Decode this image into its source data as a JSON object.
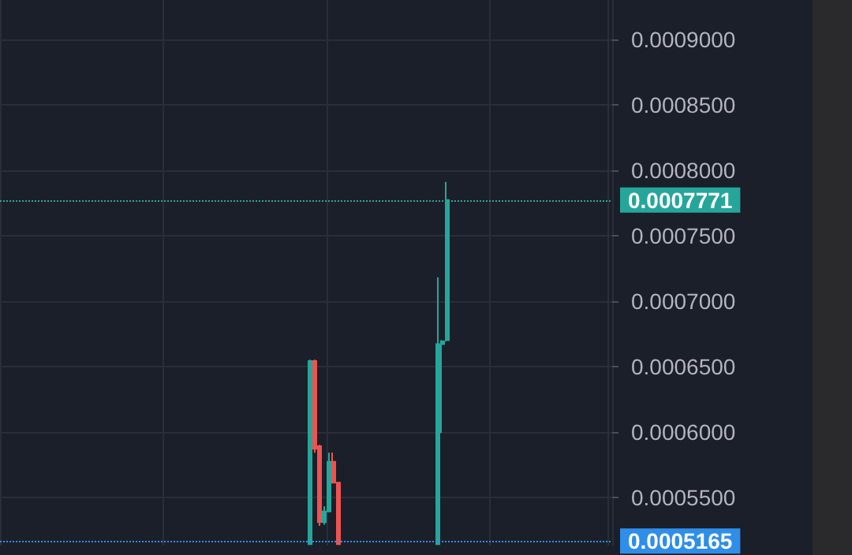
{
  "chart_data": {
    "type": "candlestick",
    "categories": [
      null,
      null,
      null,
      null,
      null,
      null,
      null,
      null,
      null,
      null,
      null,
      null,
      null,
      null,
      null,
      null,
      null,
      null,
      null,
      null,
      null,
      null,
      null,
      null,
      null,
      null,
      null,
      null,
      null,
      null,
      null,
      null,
      null,
      null,
      null,
      null,
      null,
      null,
      null,
      null,
      null,
      null,
      null,
      null,
      null,
      null,
      null,
      null,
      null,
      null,
      null,
      null,
      null,
      null,
      null,
      null,
      null,
      null,
      null,
      null,
      null,
      null,
      null,
      null,
      null,
      null,
      null,
      null,
      null,
      null,
      null,
      null,
      null,
      null,
      null,
      null,
      null,
      null,
      null,
      null,
      null,
      null,
      null,
      null,
      null,
      null,
      null,
      null,
      null,
      null,
      null,
      null,
      null,
      null,
      null,
      null,
      null,
      null,
      null,
      null,
      null,
      null,
      null,
      null,
      null,
      null,
      null,
      null,
      null,
      null,
      null,
      null,
      null,
      null,
      null,
      null,
      null,
      null,
      null,
      null,
      null,
      null,
      null,
      null,
      null,
      null,
      null,
      null,
      null,
      null,
      null,
      null,
      null,
      null,
      null
    ],
    "ohlc": [
      null,
      null,
      null,
      null,
      null,
      null,
      null,
      null,
      null,
      null,
      null,
      null,
      null,
      null,
      null,
      null,
      null,
      null,
      null,
      null,
      null,
      null,
      null,
      null,
      null,
      null,
      null,
      null,
      null,
      null,
      null,
      null,
      null,
      null,
      null,
      null,
      null,
      null,
      null,
      null,
      null,
      null,
      null,
      null,
      null,
      null,
      null,
      null,
      null,
      null,
      null,
      null,
      null,
      null,
      null,
      null,
      null,
      null,
      null,
      null,
      null,
      null,
      null,
      null,
      null,
      null,
      null,
      null,
      [
        0.000514,
        0.000655,
        0.000514,
        0.000654
      ],
      [
        0.000654,
        0.000655,
        0.000584,
        0.000587
      ],
      [
        0.000589,
        0.00059,
        0.000528,
        0.000531
      ],
      [
        0.000531,
        0.000543,
        0.000529,
        0.000539
      ],
      [
        0.000539,
        0.000584,
        0.000539,
        0.000577
      ],
      [
        0.000577,
        0.000584,
        0.000561,
        0.000561
      ],
      [
        0.000561,
        0.000561,
        0.000514,
        0.000514
      ],
      null,
      null,
      null,
      null,
      null,
      null,
      null,
      null,
      null,
      null,
      null,
      null,
      null,
      null,
      null,
      null,
      null,
      null,
      null,
      null,
      null,
      [
        0.000514,
        0.000718,
        0.000514,
        0.000667
      ],
      [
        0.000667,
        0.00067,
        0.000599,
        0.000669
      ],
      [
        0.00067,
        0.000791,
        0.000669,
        0.0007771
      ],
      null,
      null,
      null,
      null,
      null,
      null,
      null,
      null,
      null,
      null,
      null,
      null,
      null,
      null,
      null,
      null,
      null,
      null,
      null,
      null,
      null,
      null,
      null,
      null,
      null,
      null,
      null,
      null,
      null,
      null,
      null,
      null,
      null,
      null,
      null,
      null
    ],
    "colors": [
      null,
      null,
      null,
      null,
      null,
      null,
      null,
      null,
      null,
      null,
      null,
      null,
      null,
      null,
      null,
      null,
      null,
      null,
      null,
      null,
      null,
      null,
      null,
      null,
      null,
      null,
      null,
      null,
      null,
      null,
      null,
      null,
      null,
      null,
      null,
      null,
      null,
      null,
      null,
      null,
      null,
      null,
      null,
      null,
      null,
      null,
      null,
      null,
      null,
      null,
      null,
      null,
      null,
      null,
      null,
      null,
      null,
      null,
      null,
      null,
      null,
      null,
      null,
      null,
      null,
      null,
      null,
      null,
      "#26a69a",
      "#ef5350",
      "#ef5350",
      "#26a69a",
      "#26a69a",
      "#ef5350",
      "#ef5350",
      null,
      null,
      null,
      null,
      null,
      null,
      null,
      null,
      null,
      null,
      null,
      null,
      null,
      null,
      null,
      null,
      null,
      null,
      null,
      null,
      null,
      "#26a69a",
      "#26a69a",
      "#26a69a",
      null,
      null,
      null,
      null,
      null,
      null,
      null,
      null,
      null,
      null,
      null,
      null,
      null,
      null,
      null,
      null,
      null,
      null,
      null,
      null,
      null,
      null,
      null,
      null,
      null,
      null,
      null,
      null,
      null,
      null,
      null,
      null,
      null,
      null,
      null,
      null
    ],
    "ylim": [
      0.000513,
      0.00093
    ],
    "yticks": [
      {
        "value": 0.00055,
        "label": "0.0005500"
      },
      {
        "value": 0.0006,
        "label": "0.0006000"
      },
      {
        "value": 0.00065,
        "label": "0.0006500"
      },
      {
        "value": 0.0007,
        "label": "0.0007000"
      },
      {
        "value": 0.00075,
        "label": "0.0007500"
      },
      {
        "value": 0.0008,
        "label": "0.0008000"
      },
      {
        "value": 0.00085,
        "label": "0.0008500"
      },
      {
        "value": 0.0009,
        "label": "0.0009000"
      }
    ],
    "ref_lines": [
      {
        "axis": "y",
        "value": 0.0007771,
        "label": "0.0007771",
        "color": "#26a69a",
        "line_style": "dotted"
      },
      {
        "axis": "y",
        "value": 0.0005165,
        "label": "0.0005165",
        "color": "#2f8ee8",
        "line_style": "dotted"
      }
    ],
    "grid": true,
    "tick_labels": "y"
  }
}
